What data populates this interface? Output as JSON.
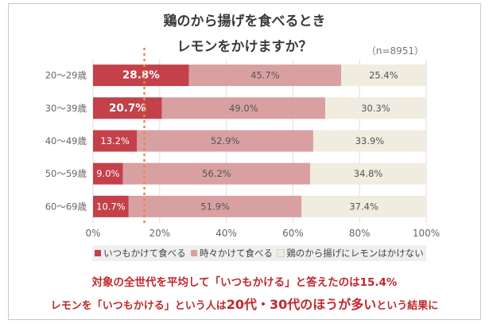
{
  "title_line1": "鶏のから揚げを食べるとき",
  "title_line2": "レモンをかけますか？",
  "sample_note": "（n=8951）",
  "colors": {
    "series": [
      "#c4414a",
      "#d9a0a2",
      "#f0ece0"
    ],
    "average_line": "#e8884a",
    "footer_text": "#c0282d"
  },
  "chart_data": {
    "type": "bar",
    "orientation": "horizontal",
    "stacked": true,
    "categories": [
      "20～29歳",
      "30～39歳",
      "40～49歳",
      "50～59歳",
      "60～69歳"
    ],
    "series": [
      {
        "name": "いつもかけて食べる",
        "values": [
          28.8,
          20.7,
          13.2,
          9.0,
          10.7
        ],
        "labels": [
          "28.8%",
          "20.7%",
          "13.2%",
          "9.0%",
          "10.7%"
        ]
      },
      {
        "name": "時々かけて食べる",
        "values": [
          45.7,
          49.0,
          52.9,
          56.2,
          51.9
        ],
        "labels": [
          "45.7%",
          "49.0%",
          "52.9%",
          "56.2%",
          "51.9%"
        ]
      },
      {
        "name": "鶏のから揚げにレモンはかけない",
        "values": [
          25.4,
          30.3,
          33.9,
          34.8,
          37.4
        ],
        "labels": [
          "25.4%",
          "30.3%",
          "33.9%",
          "34.8%",
          "37.4%"
        ]
      }
    ],
    "xlim": [
      0,
      100
    ],
    "xticks": [
      "0%",
      "20%",
      "40%",
      "60%",
      "80%",
      "100%"
    ],
    "average_reference": 15.4,
    "bold_label_rows": [
      0,
      1
    ],
    "grid": true,
    "legend": "bottom"
  },
  "footer": {
    "line1": "対象の全世代を平均して「いつもかける」と答えたのは15.4%",
    "line2_a": "レモンを「いつもかける」という人は",
    "line2_b": "20代・30代のほうが多い",
    "line2_c": "という結果に"
  }
}
